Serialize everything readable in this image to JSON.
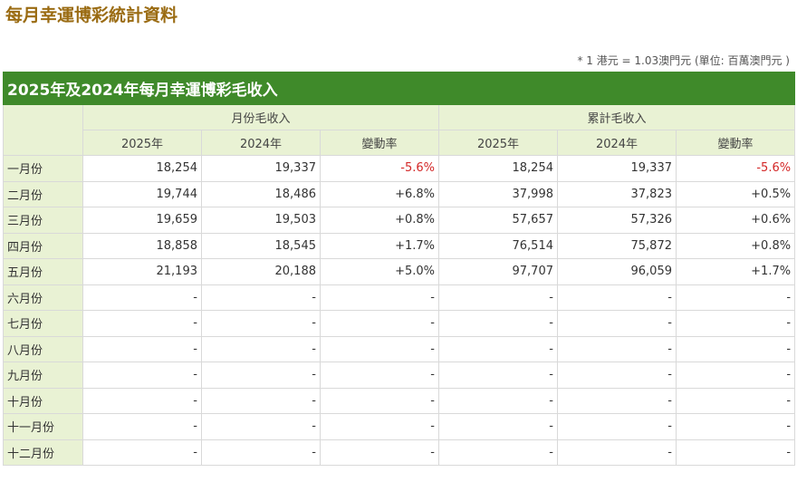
{
  "page_title": "每月幸運博彩統計資料",
  "note": "* 1 港元 = 1.03澳門元 (單位: 百萬澳門元 )",
  "table": {
    "caption": "2025年及2024年每月幸運博彩毛收入",
    "group_headers": [
      "月份毛收入",
      "累計毛收入"
    ],
    "sub_headers": [
      "2025年",
      "2024年",
      "變動率",
      "2025年",
      "2024年",
      "變動率"
    ],
    "rows": [
      {
        "month": "一月份",
        "cells": [
          "18,254",
          "19,337",
          "-5.6%",
          "18,254",
          "19,337",
          "-5.6%"
        ]
      },
      {
        "month": "二月份",
        "cells": [
          "19,744",
          "18,486",
          "+6.8%",
          "37,998",
          "37,823",
          "+0.5%"
        ]
      },
      {
        "month": "三月份",
        "cells": [
          "19,659",
          "19,503",
          "+0.8%",
          "57,657",
          "57,326",
          "+0.6%"
        ]
      },
      {
        "month": "四月份",
        "cells": [
          "18,858",
          "18,545",
          "+1.7%",
          "76,514",
          "75,872",
          "+0.8%"
        ]
      },
      {
        "month": "五月份",
        "cells": [
          "21,193",
          "20,188",
          "+5.0%",
          "97,707",
          "96,059",
          "+1.7%"
        ]
      },
      {
        "month": "六月份",
        "cells": [
          "-",
          "-",
          "-",
          "-",
          "-",
          "-"
        ]
      },
      {
        "month": "七月份",
        "cells": [
          "-",
          "-",
          "-",
          "-",
          "-",
          "-"
        ]
      },
      {
        "month": "八月份",
        "cells": [
          "-",
          "-",
          "-",
          "-",
          "-",
          "-"
        ]
      },
      {
        "month": "九月份",
        "cells": [
          "-",
          "-",
          "-",
          "-",
          "-",
          "-"
        ]
      },
      {
        "month": "十月份",
        "cells": [
          "-",
          "-",
          "-",
          "-",
          "-",
          "-"
        ]
      },
      {
        "month": "十一月份",
        "cells": [
          "-",
          "-",
          "-",
          "-",
          "-",
          "-"
        ]
      },
      {
        "month": "十二月份",
        "cells": [
          "-",
          "-",
          "-",
          "-",
          "-",
          "-"
        ]
      }
    ]
  },
  "colors": {
    "header_green": "#3f8a2a",
    "header_light": "#e9f2d4",
    "negative": "#d32626",
    "title": "#9a6b12"
  }
}
